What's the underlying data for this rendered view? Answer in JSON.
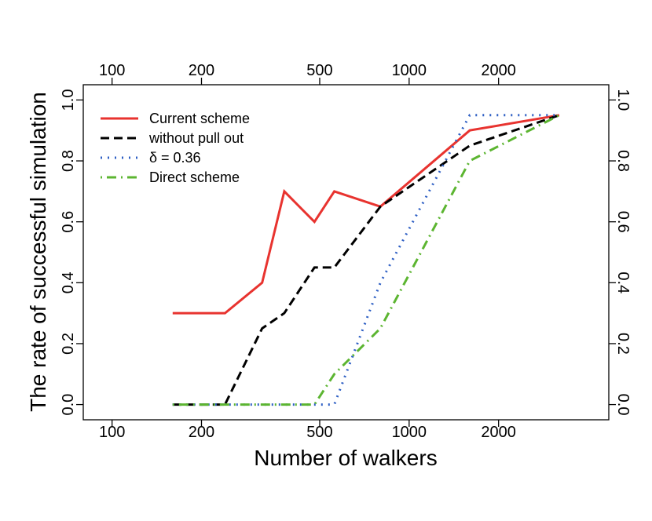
{
  "chart_data": {
    "type": "line",
    "xlabel": "Number of walkers",
    "ylabel": "The rate of successful simulation",
    "x_scale": "log",
    "xlim": [
      80,
      4700
    ],
    "ylim": [
      -0.05,
      1.05
    ],
    "x_ticks": [
      100,
      200,
      500,
      1000,
      2000
    ],
    "x_tick_labels": [
      "100",
      "200",
      "500",
      "1000",
      "2000"
    ],
    "y_ticks": [
      0.0,
      0.2,
      0.4,
      0.6,
      0.8,
      1.0
    ],
    "y_tick_labels": [
      "0.0",
      "0.2",
      "0.4",
      "0.6",
      "0.8",
      "1.0"
    ],
    "secondary_axes": [
      "top",
      "right"
    ],
    "grid": false,
    "legend_position": "top-left",
    "series": [
      {
        "name": "Current scheme",
        "color": "#e8332f",
        "style": "solid",
        "points": [
          [
            160,
            0.3
          ],
          [
            240,
            0.3
          ],
          [
            320,
            0.4
          ],
          [
            380,
            0.7
          ],
          [
            480,
            0.6
          ],
          [
            560,
            0.7
          ],
          [
            800,
            0.65
          ],
          [
            1600,
            0.9
          ],
          [
            3200,
            0.95
          ]
        ]
      },
      {
        "name": "without pull out",
        "color": "#000000",
        "style": "dashed",
        "points": [
          [
            160,
            0.0
          ],
          [
            240,
            0.0
          ],
          [
            320,
            0.25
          ],
          [
            380,
            0.3
          ],
          [
            480,
            0.45
          ],
          [
            560,
            0.45
          ],
          [
            800,
            0.65
          ],
          [
            1600,
            0.85
          ],
          [
            3200,
            0.95
          ]
        ]
      },
      {
        "name": "δ = 0.36",
        "color": "#2e5fc4",
        "style": "dotted",
        "points": [
          [
            160,
            0.0
          ],
          [
            240,
            0.0
          ],
          [
            320,
            0.0
          ],
          [
            380,
            0.0
          ],
          [
            480,
            0.0
          ],
          [
            560,
            0.0
          ],
          [
            800,
            0.4
          ],
          [
            1600,
            0.95
          ],
          [
            3200,
            0.95
          ]
        ]
      },
      {
        "name": "Direct scheme",
        "color": "#5cb531",
        "style": "dotdash",
        "points": [
          [
            160,
            0.0
          ],
          [
            240,
            0.0
          ],
          [
            320,
            0.0
          ],
          [
            380,
            0.0
          ],
          [
            480,
            0.0
          ],
          [
            560,
            0.1
          ],
          [
            800,
            0.25
          ],
          [
            1600,
            0.8
          ],
          [
            3200,
            0.95
          ]
        ]
      }
    ]
  }
}
